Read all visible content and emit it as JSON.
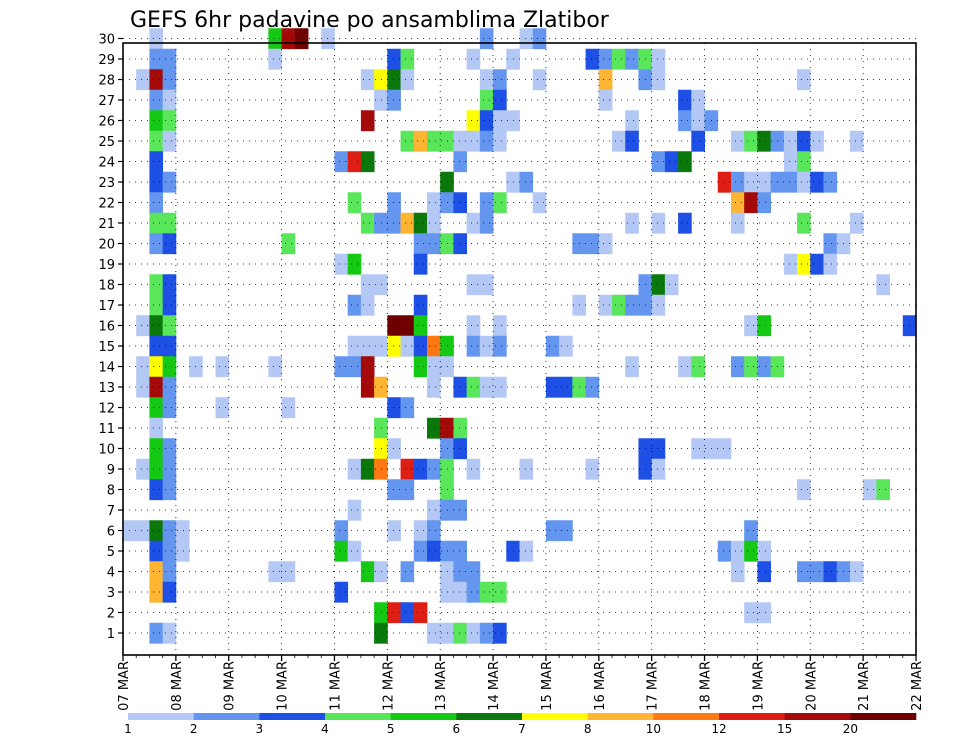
{
  "chart_data": {
    "type": "heatmap",
    "title": "GEFS 6hr padavine po ansamblima Zlatibor",
    "xlabel": "",
    "ylabel": "",
    "x_tick_labels": [
      "07 MAR",
      "08 MAR",
      "09 MAR",
      "10 MAR",
      "11 MAR",
      "12 MAR",
      "13 MAR",
      "14 MAR",
      "15 MAR",
      "16 MAR",
      "17 MAR",
      "18 MAR",
      "19 MAR",
      "20 MAR",
      "21 MAR",
      "22 MAR"
    ],
    "y_tick_labels": [
      "1",
      "2",
      "3",
      "4",
      "5",
      "6",
      "7",
      "8",
      "9",
      "10",
      "11",
      "12",
      "13",
      "14",
      "15",
      "16",
      "17",
      "18",
      "19",
      "20",
      "21",
      "22",
      "23",
      "24",
      "25",
      "26",
      "27",
      "28",
      "29",
      "30"
    ],
    "x_range_steps": [
      0,
      60
    ],
    "steps_per_day": 4,
    "grid": true,
    "legend": {
      "placement": "bottom",
      "bounds": [
        "1",
        "2",
        "3",
        "4",
        "5",
        "6",
        "7",
        "8",
        "10",
        "12",
        "15",
        "20"
      ],
      "colors": [
        "#b4c8f5",
        "#6496f0",
        "#1e50e6",
        "#5ae65a",
        "#14c814",
        "#0a780a",
        "#ffff00",
        "#ffb432",
        "#ff7814",
        "#dc1e14",
        "#a50a0a",
        "#6e0000"
      ]
    },
    "cells": [
      [
        30,
        2,
        0
      ],
      [
        30,
        11,
        4
      ],
      [
        30,
        12,
        10
      ],
      [
        30,
        13,
        11
      ],
      [
        30,
        15,
        0
      ],
      [
        30,
        27,
        1
      ],
      [
        30,
        30,
        0
      ],
      [
        30,
        31,
        1
      ],
      [
        29,
        2,
        1
      ],
      [
        29,
        3,
        1
      ],
      [
        29,
        11,
        0
      ],
      [
        29,
        20,
        2
      ],
      [
        29,
        21,
        3
      ],
      [
        29,
        26,
        0
      ],
      [
        29,
        29,
        0
      ],
      [
        29,
        35,
        2
      ],
      [
        29,
        36,
        1
      ],
      [
        29,
        37,
        3
      ],
      [
        29,
        38,
        1
      ],
      [
        29,
        39,
        3
      ],
      [
        29,
        40,
        0
      ],
      [
        28,
        1,
        0
      ],
      [
        28,
        2,
        10
      ],
      [
        28,
        3,
        1
      ],
      [
        28,
        18,
        0
      ],
      [
        28,
        19,
        6
      ],
      [
        28,
        20,
        5
      ],
      [
        28,
        21,
        0
      ],
      [
        28,
        27,
        0
      ],
      [
        28,
        28,
        1
      ],
      [
        28,
        31,
        0
      ],
      [
        28,
        36,
        7
      ],
      [
        28,
        39,
        1
      ],
      [
        28,
        40,
        0
      ],
      [
        28,
        51,
        0
      ],
      [
        27,
        2,
        1
      ],
      [
        27,
        3,
        0
      ],
      [
        27,
        19,
        0
      ],
      [
        27,
        20,
        1
      ],
      [
        27,
        27,
        3
      ],
      [
        27,
        28,
        2
      ],
      [
        27,
        36,
        0
      ],
      [
        27,
        42,
        2
      ],
      [
        27,
        43,
        0
      ],
      [
        26,
        2,
        4
      ],
      [
        26,
        3,
        3
      ],
      [
        26,
        18,
        10
      ],
      [
        26,
        26,
        6
      ],
      [
        26,
        27,
        2
      ],
      [
        26,
        28,
        0
      ],
      [
        26,
        29,
        0
      ],
      [
        26,
        38,
        0
      ],
      [
        26,
        42,
        1
      ],
      [
        26,
        43,
        0
      ],
      [
        26,
        44,
        1
      ],
      [
        25,
        2,
        3
      ],
      [
        25,
        3,
        0
      ],
      [
        25,
        21,
        3
      ],
      [
        25,
        22,
        7
      ],
      [
        25,
        23,
        3
      ],
      [
        25,
        24,
        3
      ],
      [
        25,
        25,
        0
      ],
      [
        25,
        26,
        0
      ],
      [
        25,
        27,
        1
      ],
      [
        25,
        28,
        0
      ],
      [
        25,
        37,
        0
      ],
      [
        25,
        38,
        2
      ],
      [
        25,
        43,
        2
      ],
      [
        25,
        46,
        0
      ],
      [
        25,
        47,
        3
      ],
      [
        25,
        48,
        5
      ],
      [
        25,
        49,
        1
      ],
      [
        25,
        50,
        0
      ],
      [
        25,
        51,
        2
      ],
      [
        25,
        52,
        0
      ],
      [
        25,
        55,
        0
      ],
      [
        24,
        2,
        2
      ],
      [
        24,
        16,
        1
      ],
      [
        24,
        17,
        9
      ],
      [
        24,
        18,
        5
      ],
      [
        24,
        25,
        1
      ],
      [
        24,
        40,
        1
      ],
      [
        24,
        41,
        2
      ],
      [
        24,
        42,
        5
      ],
      [
        24,
        50,
        0
      ],
      [
        24,
        51,
        3
      ],
      [
        23,
        2,
        2
      ],
      [
        23,
        3,
        1
      ],
      [
        23,
        24,
        5
      ],
      [
        23,
        29,
        0
      ],
      [
        23,
        30,
        1
      ],
      [
        23,
        45,
        9
      ],
      [
        23,
        46,
        1
      ],
      [
        23,
        47,
        0
      ],
      [
        23,
        48,
        0
      ],
      [
        23,
        49,
        1
      ],
      [
        23,
        50,
        1
      ],
      [
        23,
        51,
        0
      ],
      [
        23,
        52,
        2
      ],
      [
        23,
        53,
        1
      ],
      [
        22,
        2,
        1
      ],
      [
        22,
        17,
        3
      ],
      [
        22,
        20,
        1
      ],
      [
        22,
        23,
        0
      ],
      [
        22,
        24,
        1
      ],
      [
        22,
        25,
        2
      ],
      [
        22,
        27,
        1
      ],
      [
        22,
        28,
        3
      ],
      [
        22,
        31,
        0
      ],
      [
        22,
        46,
        7
      ],
      [
        22,
        47,
        10
      ],
      [
        22,
        48,
        1
      ],
      [
        21,
        2,
        3
      ],
      [
        21,
        3,
        3
      ],
      [
        21,
        18,
        3
      ],
      [
        21,
        19,
        1
      ],
      [
        21,
        20,
        1
      ],
      [
        21,
        21,
        7
      ],
      [
        21,
        22,
        5
      ],
      [
        21,
        23,
        0
      ],
      [
        21,
        26,
        0
      ],
      [
        21,
        27,
        1
      ],
      [
        21,
        38,
        0
      ],
      [
        21,
        40,
        0
      ],
      [
        21,
        42,
        2
      ],
      [
        21,
        46,
        0
      ],
      [
        21,
        51,
        3
      ],
      [
        21,
        55,
        0
      ],
      [
        20,
        2,
        1
      ],
      [
        20,
        3,
        2
      ],
      [
        20,
        12,
        3
      ],
      [
        20,
        22,
        1
      ],
      [
        20,
        23,
        1
      ],
      [
        20,
        24,
        3
      ],
      [
        20,
        25,
        2
      ],
      [
        20,
        34,
        1
      ],
      [
        20,
        35,
        1
      ],
      [
        20,
        36,
        0
      ],
      [
        20,
        53,
        1
      ],
      [
        20,
        54,
        0
      ],
      [
        19,
        16,
        0
      ],
      [
        19,
        17,
        4
      ],
      [
        19,
        22,
        2
      ],
      [
        19,
        50,
        0
      ],
      [
        19,
        51,
        6
      ],
      [
        19,
        52,
        2
      ],
      [
        19,
        53,
        0
      ],
      [
        18,
        2,
        3
      ],
      [
        18,
        3,
        2
      ],
      [
        18,
        18,
        0
      ],
      [
        18,
        19,
        0
      ],
      [
        18,
        26,
        0
      ],
      [
        18,
        27,
        0
      ],
      [
        18,
        39,
        1
      ],
      [
        18,
        40,
        5
      ],
      [
        18,
        41,
        0
      ],
      [
        18,
        57,
        0
      ],
      [
        17,
        2,
        3
      ],
      [
        17,
        3,
        2
      ],
      [
        17,
        17,
        1
      ],
      [
        17,
        18,
        0
      ],
      [
        17,
        22,
        2
      ],
      [
        17,
        34,
        0
      ],
      [
        17,
        36,
        0
      ],
      [
        17,
        37,
        3
      ],
      [
        17,
        38,
        1
      ],
      [
        17,
        39,
        1
      ],
      [
        17,
        40,
        0
      ],
      [
        16,
        1,
        0
      ],
      [
        16,
        2,
        5
      ],
      [
        16,
        3,
        3
      ],
      [
        16,
        20,
        11
      ],
      [
        16,
        21,
        11
      ],
      [
        16,
        22,
        4
      ],
      [
        16,
        26,
        0
      ],
      [
        16,
        28,
        0
      ],
      [
        16,
        47,
        0
      ],
      [
        16,
        48,
        4
      ],
      [
        16,
        59,
        2
      ],
      [
        15,
        2,
        2
      ],
      [
        15,
        3,
        2
      ],
      [
        15,
        17,
        0
      ],
      [
        15,
        18,
        0
      ],
      [
        15,
        19,
        0
      ],
      [
        15,
        20,
        6
      ],
      [
        15,
        21,
        0
      ],
      [
        15,
        22,
        2
      ],
      [
        15,
        23,
        8
      ],
      [
        15,
        24,
        4
      ],
      [
        15,
        26,
        1
      ],
      [
        15,
        27,
        0
      ],
      [
        15,
        28,
        1
      ],
      [
        15,
        32,
        1
      ],
      [
        15,
        33,
        0
      ],
      [
        14,
        1,
        0
      ],
      [
        14,
        2,
        6
      ],
      [
        14,
        3,
        4
      ],
      [
        14,
        5,
        0
      ],
      [
        14,
        7,
        0
      ],
      [
        14,
        11,
        0
      ],
      [
        14,
        16,
        1
      ],
      [
        14,
        17,
        1
      ],
      [
        14,
        18,
        10
      ],
      [
        14,
        22,
        4
      ],
      [
        14,
        23,
        0
      ],
      [
        14,
        24,
        0
      ],
      [
        14,
        38,
        0
      ],
      [
        14,
        42,
        0
      ],
      [
        14,
        43,
        3
      ],
      [
        14,
        46,
        1
      ],
      [
        14,
        47,
        3
      ],
      [
        14,
        48,
        1
      ],
      [
        14,
        49,
        3
      ],
      [
        13,
        1,
        0
      ],
      [
        13,
        2,
        10
      ],
      [
        13,
        3,
        1
      ],
      [
        13,
        18,
        10
      ],
      [
        13,
        19,
        7
      ],
      [
        13,
        23,
        0
      ],
      [
        13,
        25,
        2
      ],
      [
        13,
        26,
        3
      ],
      [
        13,
        27,
        0
      ],
      [
        13,
        28,
        0
      ],
      [
        13,
        32,
        2
      ],
      [
        13,
        33,
        2
      ],
      [
        13,
        34,
        3
      ],
      [
        13,
        35,
        1
      ],
      [
        12,
        2,
        4
      ],
      [
        12,
        3,
        1
      ],
      [
        12,
        7,
        0
      ],
      [
        12,
        12,
        0
      ],
      [
        12,
        20,
        2
      ],
      [
        12,
        21,
        1
      ],
      [
        11,
        2,
        0
      ],
      [
        11,
        19,
        3
      ],
      [
        11,
        23,
        5
      ],
      [
        11,
        24,
        10
      ],
      [
        11,
        25,
        3
      ],
      [
        10,
        2,
        4
      ],
      [
        10,
        3,
        1
      ],
      [
        10,
        19,
        6
      ],
      [
        10,
        20,
        0
      ],
      [
        10,
        24,
        1
      ],
      [
        10,
        25,
        2
      ],
      [
        10,
        39,
        2
      ],
      [
        10,
        40,
        2
      ],
      [
        10,
        43,
        0
      ],
      [
        10,
        44,
        0
      ],
      [
        10,
        45,
        0
      ],
      [
        9,
        1,
        0
      ],
      [
        9,
        2,
        4
      ],
      [
        9,
        3,
        1
      ],
      [
        9,
        17,
        0
      ],
      [
        9,
        18,
        5
      ],
      [
        9,
        19,
        8
      ],
      [
        9,
        21,
        9
      ],
      [
        9,
        22,
        2
      ],
      [
        9,
        23,
        1
      ],
      [
        9,
        24,
        3
      ],
      [
        9,
        26,
        0
      ],
      [
        9,
        30,
        0
      ],
      [
        9,
        35,
        0
      ],
      [
        9,
        39,
        2
      ],
      [
        9,
        40,
        0
      ],
      [
        8,
        2,
        2
      ],
      [
        8,
        3,
        1
      ],
      [
        8,
        20,
        1
      ],
      [
        8,
        21,
        1
      ],
      [
        8,
        24,
        3
      ],
      [
        8,
        51,
        0
      ],
      [
        8,
        56,
        0
      ],
      [
        8,
        57,
        3
      ],
      [
        7,
        17,
        0
      ],
      [
        7,
        23,
        0
      ],
      [
        7,
        24,
        1
      ],
      [
        7,
        25,
        1
      ],
      [
        6,
        0,
        0
      ],
      [
        6,
        1,
        0
      ],
      [
        6,
        2,
        5
      ],
      [
        6,
        3,
        1
      ],
      [
        6,
        4,
        0
      ],
      [
        6,
        16,
        1
      ],
      [
        6,
        20,
        0
      ],
      [
        6,
        22,
        0
      ],
      [
        6,
        23,
        1
      ],
      [
        6,
        32,
        1
      ],
      [
        6,
        33,
        1
      ],
      [
        6,
        47,
        1
      ],
      [
        5,
        2,
        2
      ],
      [
        5,
        3,
        1
      ],
      [
        5,
        4,
        0
      ],
      [
        5,
        16,
        4
      ],
      [
        5,
        17,
        0
      ],
      [
        5,
        22,
        1
      ],
      [
        5,
        23,
        2
      ],
      [
        5,
        24,
        1
      ],
      [
        5,
        25,
        1
      ],
      [
        5,
        29,
        2
      ],
      [
        5,
        30,
        0
      ],
      [
        5,
        45,
        1
      ],
      [
        5,
        46,
        0
      ],
      [
        5,
        47,
        4
      ],
      [
        5,
        48,
        0
      ],
      [
        4,
        2,
        7
      ],
      [
        4,
        3,
        1
      ],
      [
        4,
        11,
        0
      ],
      [
        4,
        12,
        0
      ],
      [
        4,
        18,
        4
      ],
      [
        4,
        19,
        0
      ],
      [
        4,
        21,
        1
      ],
      [
        4,
        24,
        0
      ],
      [
        4,
        25,
        1
      ],
      [
        4,
        26,
        1
      ],
      [
        4,
        46,
        0
      ],
      [
        4,
        48,
        2
      ],
      [
        4,
        51,
        1
      ],
      [
        4,
        52,
        1
      ],
      [
        4,
        53,
        2
      ],
      [
        4,
        54,
        1
      ],
      [
        4,
        55,
        0
      ],
      [
        3,
        2,
        7
      ],
      [
        3,
        3,
        2
      ],
      [
        3,
        16,
        2
      ],
      [
        3,
        24,
        0
      ],
      [
        3,
        25,
        0
      ],
      [
        3,
        26,
        1
      ],
      [
        3,
        27,
        3
      ],
      [
        3,
        28,
        3
      ],
      [
        2,
        19,
        4
      ],
      [
        2,
        20,
        9
      ],
      [
        2,
        21,
        2
      ],
      [
        2,
        22,
        9
      ],
      [
        2,
        47,
        0
      ],
      [
        2,
        48,
        0
      ],
      [
        1,
        2,
        1
      ],
      [
        1,
        3,
        0
      ],
      [
        1,
        19,
        5
      ],
      [
        1,
        23,
        0
      ],
      [
        1,
        24,
        0
      ],
      [
        1,
        25,
        3
      ],
      [
        1,
        26,
        0
      ],
      [
        1,
        27,
        1
      ],
      [
        1,
        28,
        2
      ]
    ]
  }
}
